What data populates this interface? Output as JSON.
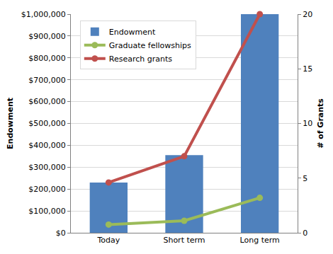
{
  "chart_data": {
    "type": "bar",
    "categories": [
      "Today",
      "Short term",
      "Long term"
    ],
    "series": [
      {
        "name": "Endowment",
        "type": "bar",
        "color": "#4f81bd",
        "values": [
          230000,
          355000,
          1000000
        ]
      },
      {
        "name": "Graduate fellowships",
        "type": "line",
        "axis": "y2",
        "color": "#9bbb59",
        "marker": "circle",
        "values": [
          0.75,
          1.1,
          3.2
        ]
      },
      {
        "name": "Research grants",
        "type": "line",
        "axis": "y2",
        "color": "#c0504d",
        "marker": "circle",
        "values": [
          4.6,
          7,
          20
        ]
      }
    ],
    "ylabel": "Endowment",
    "y2label": "# of Grants",
    "ylim": [
      0,
      1000000
    ],
    "yticks": [
      {
        "value": 0,
        "label": "$0"
      },
      {
        "value": 100000,
        "label": "$100,000"
      },
      {
        "value": 200000,
        "label": "$200,000"
      },
      {
        "value": 300000,
        "label": "$300,000"
      },
      {
        "value": 400000,
        "label": "$400,000"
      },
      {
        "value": 500000,
        "label": "$500,000"
      },
      {
        "value": 600000,
        "label": "$600,000"
      },
      {
        "value": 700000,
        "label": "$700,000"
      },
      {
        "value": 800000,
        "label": "$800,000"
      },
      {
        "value": 900000,
        "label": "$900,000"
      },
      {
        "value": 1000000,
        "label": "$1,000,000"
      }
    ],
    "y2lim": [
      0,
      20
    ],
    "y2ticks": [
      0,
      5,
      10,
      15,
      20
    ],
    "grid": true,
    "legend": "top left"
  }
}
